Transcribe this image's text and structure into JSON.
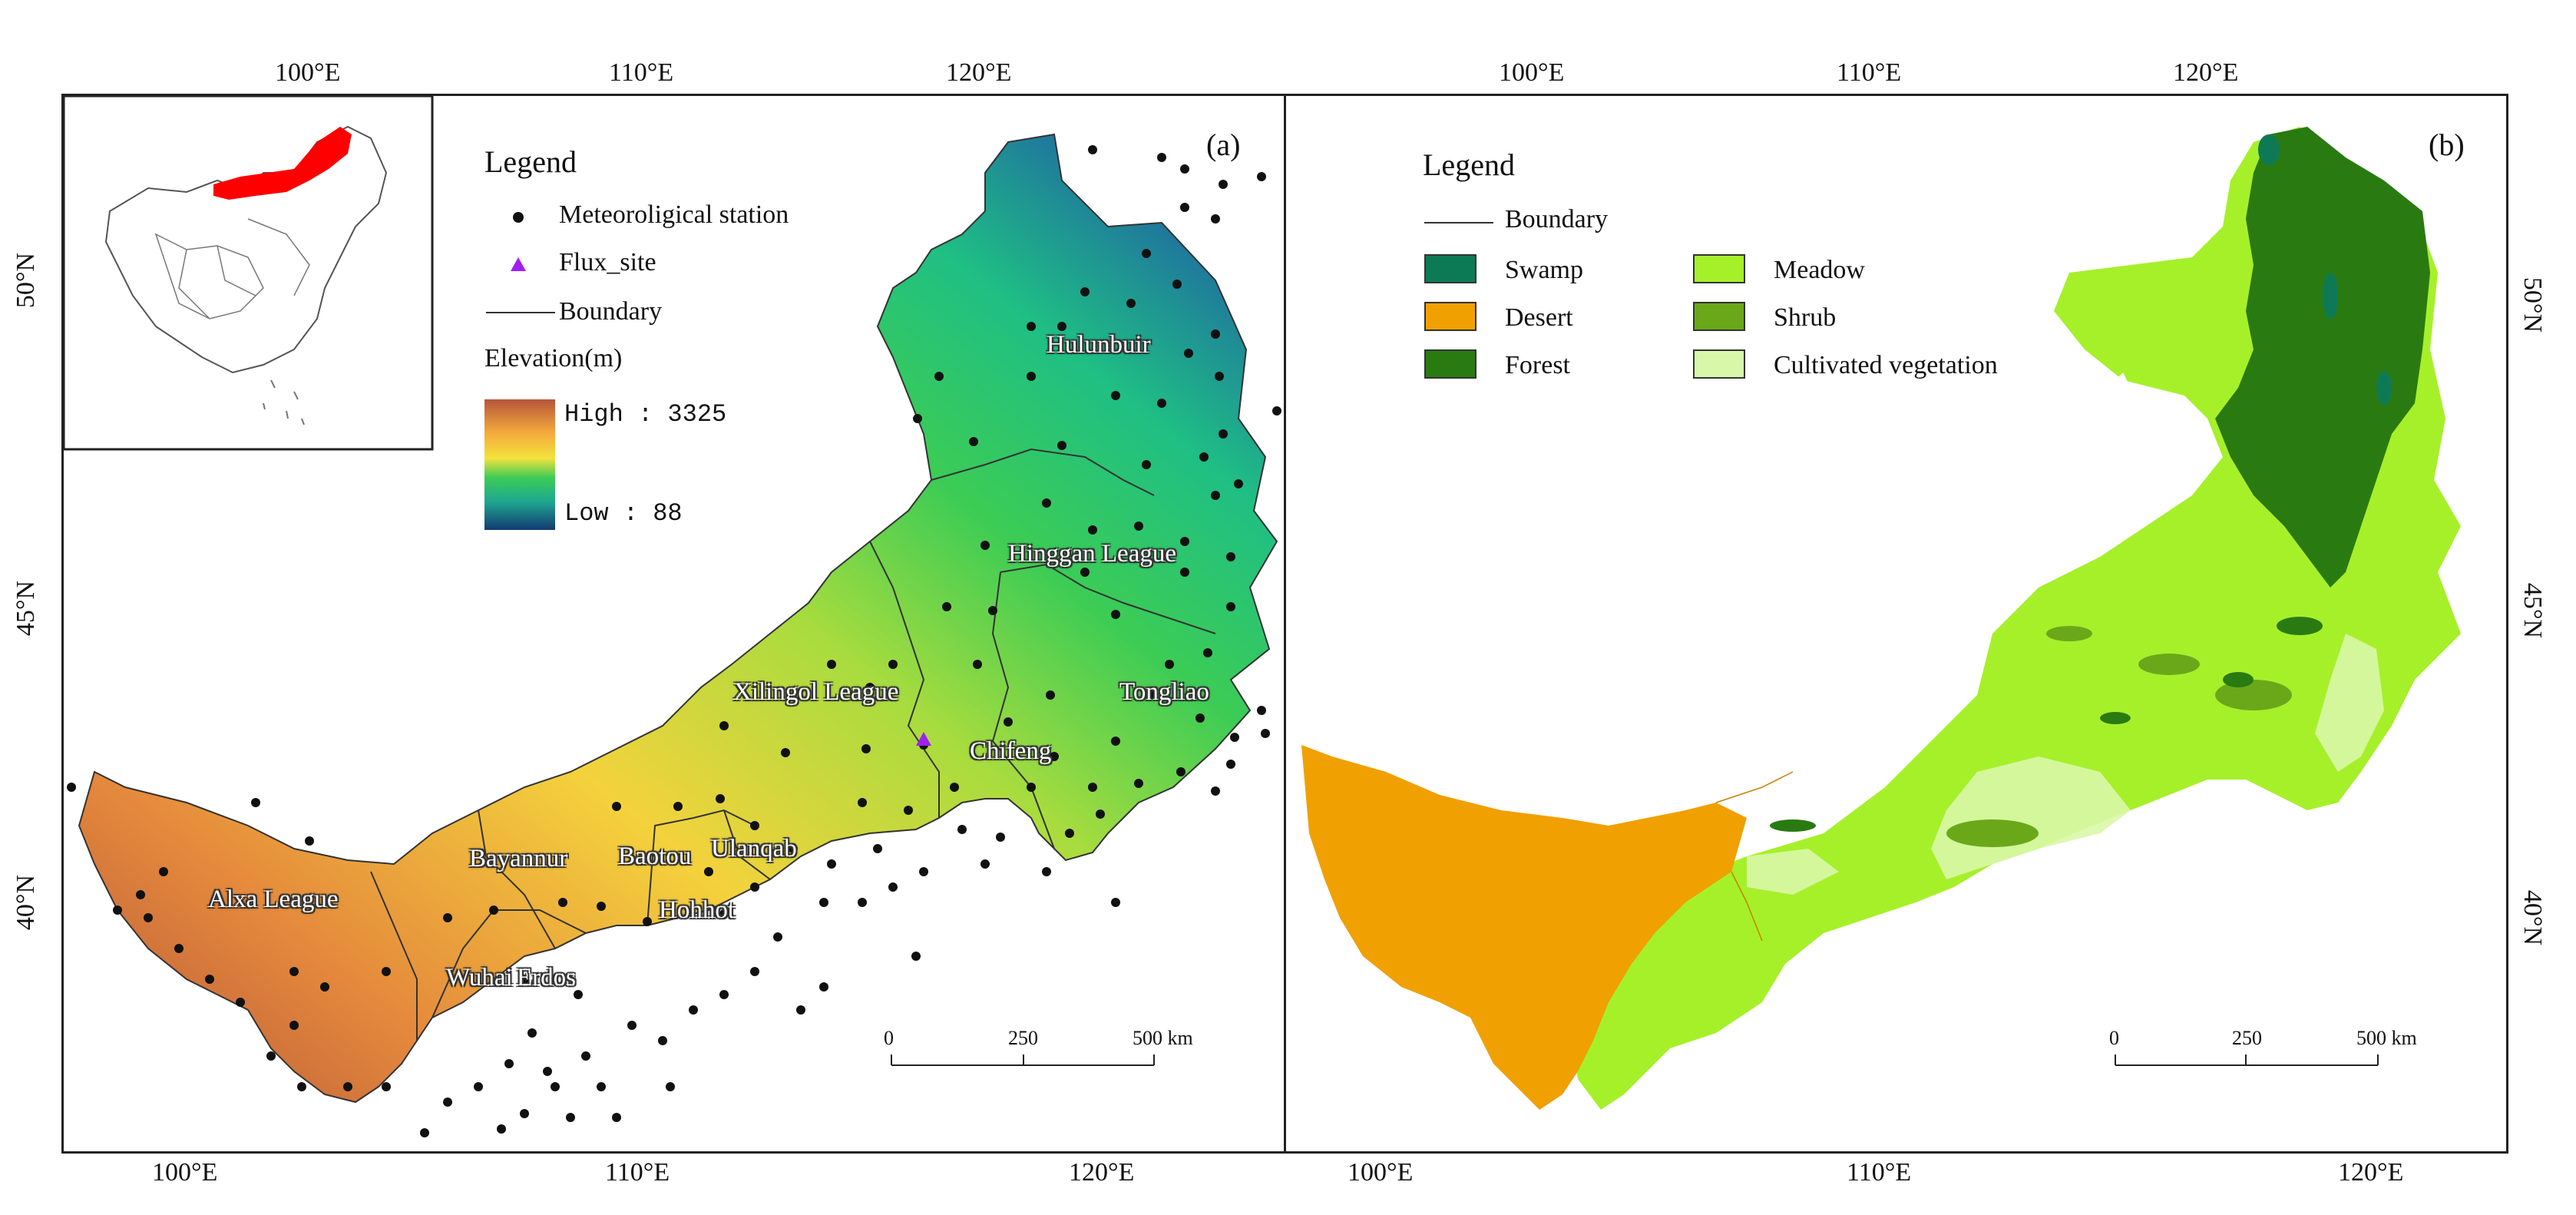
{
  "map_a": {
    "panel_label": "(a)",
    "top_ticks": [
      "100°E",
      "110°E",
      "120°E"
    ],
    "bottom_ticks": [
      "100°E",
      "110°E",
      "120°E"
    ],
    "left_ticks": [
      "50°N",
      "45°N",
      "40°N"
    ],
    "legend": {
      "title": "Legend",
      "station_label": "Meteoroligical station",
      "flux_label": "Flux_site",
      "boundary_label": "Boundary",
      "elevation_title": "Elevation(m)",
      "high_label": "High : 3325",
      "low_label": "Low : 88",
      "elevation_high": 3325,
      "elevation_low": 88,
      "ramp_colors": [
        "#b5553a",
        "#e58a3c",
        "#f4d23c",
        "#6ccf4a",
        "#1fbf84",
        "#1f6ea0",
        "#123a73"
      ]
    },
    "regions": [
      "Hulunbuir",
      "Hinggan League",
      "Tongliao",
      "Xilingol League",
      "Chifeng",
      "Ulanqab",
      "Baotou",
      "Bayannur",
      "Hohhot",
      "Alxa League",
      "Wuhai",
      "Erdos"
    ],
    "scale_bar": {
      "ticks": [
        "0",
        "250",
        "500 km"
      ]
    },
    "colors": {
      "station": "#111111",
      "flux_site": "#a020f0",
      "inset_highlight": "#ff0000"
    }
  },
  "map_b": {
    "panel_label": "(b)",
    "top_ticks": [
      "100°E",
      "110°E",
      "120°E"
    ],
    "bottom_ticks": [
      "100°E",
      "110°E",
      "120°E"
    ],
    "right_ticks": [
      "50°N",
      "45°N",
      "40°N"
    ],
    "legend": {
      "title": "Legend",
      "boundary_label": "Boundary",
      "classes": [
        {
          "name": "Swamp",
          "color": "#0e7a55"
        },
        {
          "name": "Desert",
          "color": "#f0a000"
        },
        {
          "name": "Forest",
          "color": "#2a7a12"
        },
        {
          "name": "Meadow",
          "color": "#a6f02a"
        },
        {
          "name": "Shrub",
          "color": "#6aa81a"
        },
        {
          "name": "Cultivated vegetation",
          "color": "#d9f7a8"
        }
      ]
    },
    "scale_bar": {
      "ticks": [
        "0",
        "250",
        "500 km"
      ]
    }
  }
}
